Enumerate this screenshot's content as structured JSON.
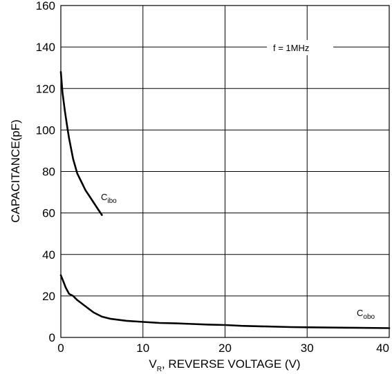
{
  "chart_data": {
    "type": "line",
    "xlabel": {
      "main": "V",
      "sub": "R",
      "rest": ", REVERSE VOLTAGE (V)"
    },
    "ylabel": "CAPACITANCE(pF)",
    "xlim": [
      0,
      40
    ],
    "ylim": [
      0,
      160
    ],
    "xticks": [
      "0",
      "10",
      "20",
      "30",
      "40"
    ],
    "yticks": [
      "0",
      "20",
      "40",
      "60",
      "80",
      "100",
      "120",
      "140",
      "160"
    ],
    "grid": true,
    "annotation": "f = 1MHz",
    "series": [
      {
        "name": {
          "main": "C",
          "sub": "ibo"
        },
        "x": [
          0.0,
          0.2,
          0.5,
          0.8,
          1.0,
          1.5,
          2.0,
          2.5,
          3.0,
          3.5,
          4.0,
          4.5,
          5.0
        ],
        "y": [
          128,
          118,
          109,
          101,
          96,
          86,
          79,
          75,
          71,
          68,
          65,
          62,
          59
        ]
      },
      {
        "name": {
          "main": "C",
          "sub": "obo"
        },
        "x": [
          0.0,
          0.3,
          0.6,
          1.0,
          1.5,
          2.0,
          3.0,
          4.0,
          5.0,
          6.0,
          7.0,
          8.0,
          10.0,
          12.0,
          14.0,
          16.0,
          18.0,
          20.0,
          22.0,
          25.0,
          28.0,
          30.0,
          35.0,
          40.0
        ],
        "y": [
          30,
          27,
          24,
          21,
          20,
          18,
          15,
          12,
          10,
          9,
          8.5,
          8,
          7.5,
          7,
          6.8,
          6.5,
          6.2,
          6,
          5.6,
          5.3,
          5,
          4.9,
          4.7,
          4.5
        ]
      }
    ]
  }
}
